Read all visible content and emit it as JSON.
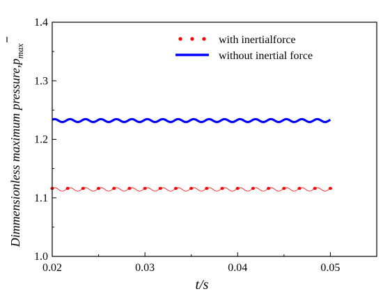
{
  "chart_data": {
    "type": "line",
    "title": "",
    "xlabel": "t/s",
    "ylabel": "Dimmensionless maximum pressure, p̄_max",
    "ylabel_prefix": "Dimmensionless maximum pressure,",
    "ylabel_symbol": "p",
    "ylabel_subscript": "max",
    "xlim": [
      0.02,
      0.055
    ],
    "ylim": [
      1.0,
      1.4
    ],
    "xticks": [
      0.02,
      0.03,
      0.04,
      0.05
    ],
    "xtick_labels": [
      "0.02",
      "0.03",
      "0.04",
      "0.05"
    ],
    "yticks": [
      1.0,
      1.1,
      1.2,
      1.3,
      1.4
    ],
    "ytick_labels": [
      "1.0",
      "1.1",
      "1.2",
      "1.3",
      "1.4"
    ],
    "grid": false,
    "legend_position": "top-right",
    "series": [
      {
        "name": "with inertialforce",
        "color": "#ff0000",
        "style": "dotted-markers",
        "x_start": 0.02,
        "x_end": 0.05,
        "mean": 1.1145,
        "amplitude": 0.003,
        "cycles": 18,
        "marker_count": 19
      },
      {
        "name": "without inertial force",
        "color": "#0000ff",
        "style": "solid",
        "x_start": 0.02,
        "x_end": 0.05,
        "mean": 1.232,
        "amplitude": 0.0025,
        "cycles": 18
      }
    ]
  }
}
